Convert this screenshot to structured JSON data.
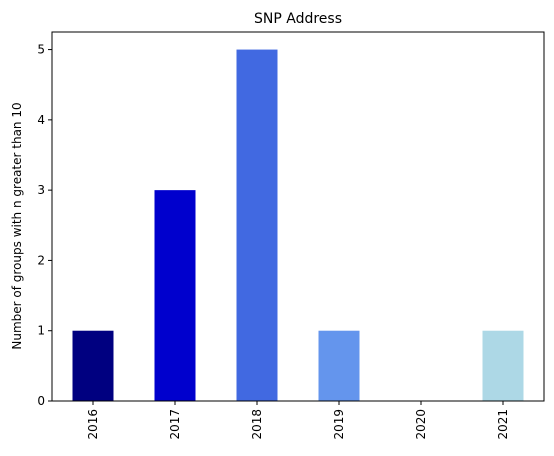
{
  "chart_data": {
    "type": "bar",
    "title": "SNP Address",
    "xlabel": "",
    "ylabel": "Number of groups with n greater than 10",
    "categories": [
      "2016",
      "2017",
      "2018",
      "2019",
      "2020",
      "2021"
    ],
    "values": [
      1,
      3,
      5,
      1,
      0,
      1
    ],
    "bar_colors": [
      "#000080",
      "#0000cd",
      "#4169e1",
      "#6495ed",
      "#b0c4de",
      "#add8e6"
    ],
    "ylim": [
      0,
      5.25
    ],
    "yticks": [
      0,
      1,
      2,
      3,
      4,
      5
    ],
    "grid": false,
    "legend": "none"
  }
}
